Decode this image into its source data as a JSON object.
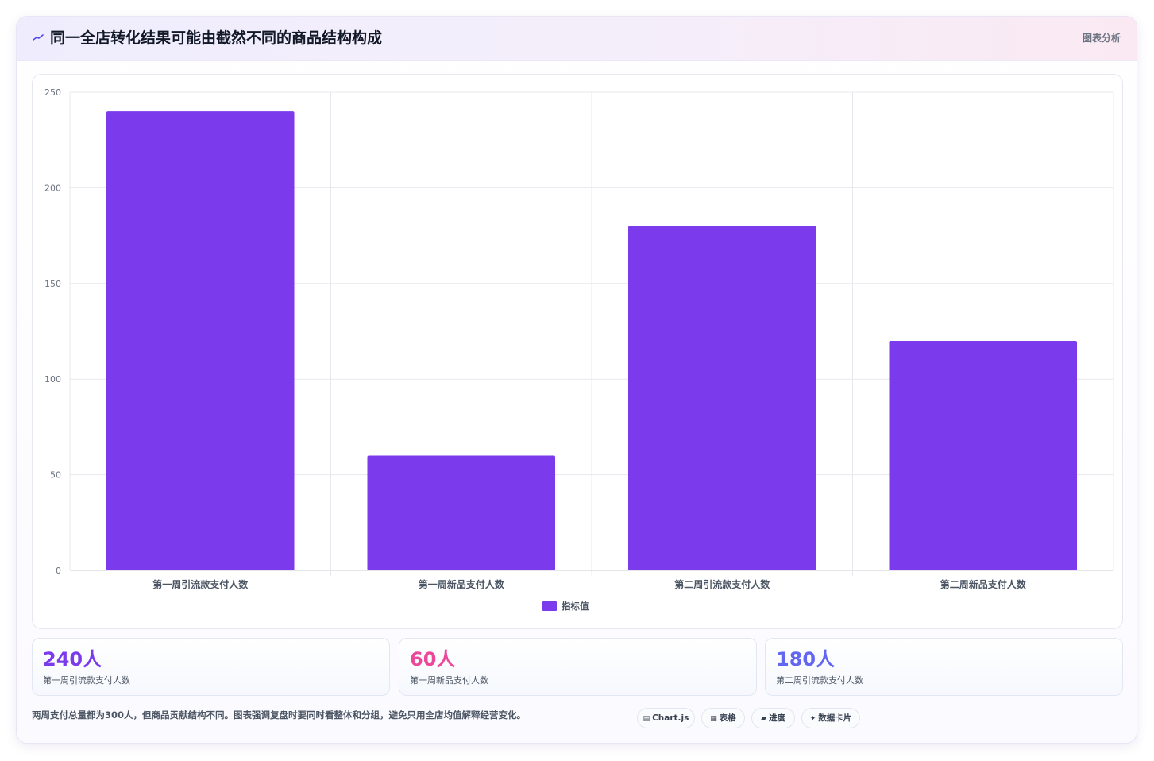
{
  "header": {
    "icon": "sparkline-icon",
    "title": "同一全店转化结果可能由截然不同的商品结构构成",
    "tag": "图表分析"
  },
  "chart_data": {
    "type": "bar",
    "categories": [
      "第一周引流款支付人数",
      "第一周新品支付人数",
      "第二周引流款支付人数",
      "第二周新品支付人数"
    ],
    "series": [
      {
        "name": "指标值",
        "values": [
          240,
          60,
          180,
          120
        ],
        "color": "#7c3aed"
      }
    ],
    "ylim": [
      0,
      250
    ],
    "yticks": [
      0,
      50,
      100,
      150,
      200,
      250
    ],
    "grid": true,
    "legend_position": "bottom"
  },
  "stats": [
    {
      "value": "240人",
      "label": "第一周引流款支付人数",
      "color": "#7c3aed"
    },
    {
      "value": "60人",
      "label": "第一周新品支付人数",
      "color": "#ec4899"
    },
    {
      "value": "180人",
      "label": "第二周引流款支付人数",
      "color": "#6366f1"
    }
  ],
  "footer": {
    "note": "两周支付总量都为300人，但商品贡献结构不同。图表强调复盘时要同时看整体和分组，避免只用全店均值解释经营变化。",
    "pills": [
      {
        "icon": "▤",
        "label": "Chart.js"
      },
      {
        "icon": "▦",
        "label": "表格"
      },
      {
        "icon": "▰",
        "label": "进度"
      },
      {
        "icon": "✦",
        "label": "数据卡片"
      }
    ]
  }
}
